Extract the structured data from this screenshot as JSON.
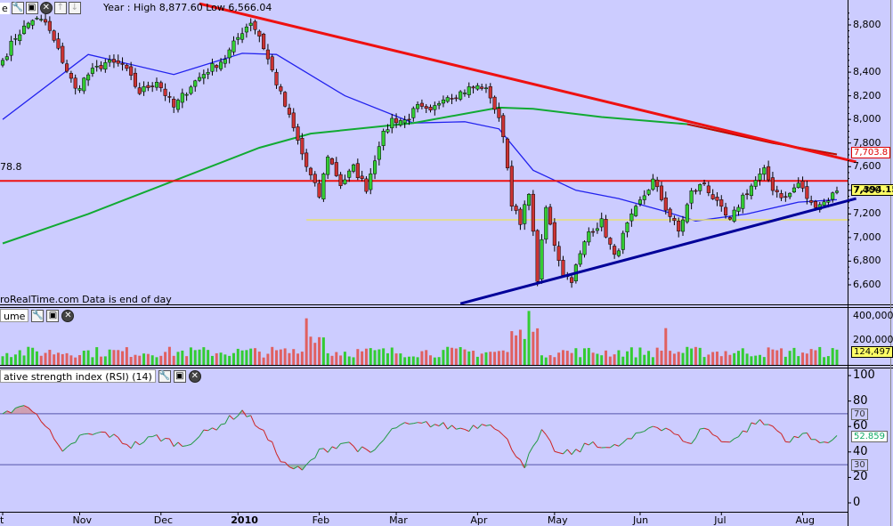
{
  "toolbar": {
    "menu_fragment": "e",
    "title": "Year : High 8,877.60 Low 6,566.04"
  },
  "price_panel": {
    "left_label": "78.8",
    "source_note": "roRealTime.com  Data is end of day",
    "y_ticks": [
      "8,800",
      "8,400",
      "8,200",
      "8,000",
      "7,800",
      "7,600",
      "7,400",
      "7,200",
      "7,000",
      "6,800",
      "6,600"
    ],
    "boxes": [
      {
        "text": "7,703.8",
        "color": "#dd0000",
        "value": 7703.8
      },
      {
        "text": "7,394.15",
        "color": "#111111",
        "value": 7394.15
      }
    ]
  },
  "volume_panel": {
    "title": "ume",
    "y_ticks": [
      "400,000",
      "200,000"
    ],
    "box": {
      "text": "124,497",
      "color": "#ffff66",
      "value": 124497
    }
  },
  "rsi_panel": {
    "title": "ative strength index (RSI) (14)",
    "y_ticks": [
      "100",
      "80",
      "60",
      "40",
      "20",
      "0"
    ],
    "level_boxes": [
      "70",
      "52.859",
      "30"
    ]
  },
  "x_axis": {
    "labels": [
      {
        "text": "t",
        "bold": false
      },
      {
        "text": "Nov",
        "bold": false
      },
      {
        "text": "Dec",
        "bold": false
      },
      {
        "text": "2010",
        "bold": true
      },
      {
        "text": "Feb",
        "bold": false
      },
      {
        "text": "Mar",
        "bold": false
      },
      {
        "text": "Apr",
        "bold": false
      },
      {
        "text": "May",
        "bold": false
      },
      {
        "text": "Jun",
        "bold": false
      },
      {
        "text": "Jul",
        "bold": false
      },
      {
        "text": "Aug",
        "bold": false
      }
    ]
  },
  "colors": {
    "background": "#ccccff",
    "bull": "#33cc33",
    "bear": "#cc3333",
    "ma_short": "#2222ee",
    "ma_long": "#11aa33",
    "trend_red": "#ee1111",
    "trend_blue": "#000099",
    "support_yellow": "#e8e070"
  },
  "chart_data": {
    "type": "candlestick",
    "title": "Year : High 8,877.60 Low 6,566.04",
    "high": 8877.6,
    "low": 6566.04,
    "last": 7394.15,
    "price_range": [
      6450,
      8950
    ],
    "x_months": [
      "Oct",
      "Nov",
      "Dec",
      "2010",
      "Feb",
      "Mar",
      "Apr",
      "May",
      "Jun",
      "Jul",
      "Aug"
    ],
    "close_anchors": [
      {
        "i": 0,
        "c": 8500
      },
      {
        "i": 3,
        "c": 8700
      },
      {
        "i": 7,
        "c": 8850
      },
      {
        "i": 10,
        "c": 8820
      },
      {
        "i": 14,
        "c": 8500
      },
      {
        "i": 17,
        "c": 8250
      },
      {
        "i": 20,
        "c": 8380
      },
      {
        "i": 24,
        "c": 8480
      },
      {
        "i": 28,
        "c": 8460
      },
      {
        "i": 32,
        "c": 8230
      },
      {
        "i": 36,
        "c": 8330
      },
      {
        "i": 40,
        "c": 8100
      },
      {
        "i": 44,
        "c": 8290
      },
      {
        "i": 48,
        "c": 8420
      },
      {
        "i": 52,
        "c": 8520
      },
      {
        "i": 56,
        "c": 8750
      },
      {
        "i": 58,
        "c": 8830
      },
      {
        "i": 60,
        "c": 8710
      },
      {
        "i": 64,
        "c": 8310
      },
      {
        "i": 68,
        "c": 7920
      },
      {
        "i": 71,
        "c": 7600
      },
      {
        "i": 74,
        "c": 7350
      },
      {
        "i": 76,
        "c": 7700
      },
      {
        "i": 79,
        "c": 7450
      },
      {
        "i": 82,
        "c": 7590
      },
      {
        "i": 85,
        "c": 7420
      },
      {
        "i": 88,
        "c": 7800
      },
      {
        "i": 91,
        "c": 8000
      },
      {
        "i": 94,
        "c": 7990
      },
      {
        "i": 97,
        "c": 8100
      },
      {
        "i": 100,
        "c": 8050
      },
      {
        "i": 103,
        "c": 8200
      },
      {
        "i": 106,
        "c": 8210
      },
      {
        "i": 109,
        "c": 8260
      },
      {
        "i": 112,
        "c": 8280
      },
      {
        "i": 114,
        "c": 8200
      },
      {
        "i": 117,
        "c": 7880
      },
      {
        "i": 119,
        "c": 7300
      },
      {
        "i": 121,
        "c": 7100
      },
      {
        "i": 123,
        "c": 7400
      },
      {
        "i": 125,
        "c": 6650
      },
      {
        "i": 127,
        "c": 7250
      },
      {
        "i": 129,
        "c": 6950
      },
      {
        "i": 131,
        "c": 6700
      },
      {
        "i": 133,
        "c": 6650
      },
      {
        "i": 135,
        "c": 6850
      },
      {
        "i": 137,
        "c": 7050
      },
      {
        "i": 140,
        "c": 7130
      },
      {
        "i": 143,
        "c": 6830
      },
      {
        "i": 146,
        "c": 7100
      },
      {
        "i": 149,
        "c": 7300
      },
      {
        "i": 152,
        "c": 7480
      },
      {
        "i": 155,
        "c": 7250
      },
      {
        "i": 158,
        "c": 7050
      },
      {
        "i": 161,
        "c": 7380
      },
      {
        "i": 164,
        "c": 7460
      },
      {
        "i": 167,
        "c": 7280
      },
      {
        "i": 170,
        "c": 7130
      },
      {
        "i": 173,
        "c": 7350
      },
      {
        "i": 176,
        "c": 7480
      },
      {
        "i": 178,
        "c": 7560
      },
      {
        "i": 180,
        "c": 7420
      },
      {
        "i": 183,
        "c": 7330
      },
      {
        "i": 186,
        "c": 7460
      },
      {
        "i": 189,
        "c": 7280
      },
      {
        "i": 192,
        "c": 7300
      },
      {
        "i": 195,
        "c": 7394
      }
    ],
    "moving_averages": [
      {
        "name": "MA short",
        "points": [
          [
            0,
            8000
          ],
          [
            20,
            8550
          ],
          [
            40,
            8380
          ],
          [
            56,
            8560
          ],
          [
            64,
            8550
          ],
          [
            80,
            8200
          ],
          [
            96,
            7970
          ],
          [
            108,
            7980
          ],
          [
            116,
            7920
          ],
          [
            124,
            7570
          ],
          [
            134,
            7400
          ],
          [
            144,
            7330
          ],
          [
            154,
            7230
          ],
          [
            162,
            7140
          ],
          [
            174,
            7200
          ],
          [
            186,
            7300
          ],
          [
            195,
            7320
          ]
        ]
      },
      {
        "name": "MA long",
        "points": [
          [
            0,
            6950
          ],
          [
            20,
            7200
          ],
          [
            40,
            7480
          ],
          [
            60,
            7760
          ],
          [
            72,
            7880
          ],
          [
            96,
            7970
          ],
          [
            116,
            8100
          ],
          [
            124,
            8090
          ],
          [
            140,
            8020
          ],
          [
            160,
            7960
          ],
          [
            180,
            7800
          ],
          [
            195,
            7703.8
          ]
        ]
      }
    ],
    "trendlines": [
      {
        "color": "red",
        "from": [
          46,
          8980
        ],
        "to": [
          197,
          7640
        ]
      },
      {
        "color": "blue",
        "from": [
          107,
          6440
        ],
        "to": [
          197,
          7330
        ]
      }
    ],
    "horizontal_levels": [
      {
        "value": 7480,
        "color": "red"
      },
      {
        "value": 7150,
        "color": "yellow"
      }
    ],
    "volume": {
      "ylim": [
        0,
        450000
      ],
      "last": 124497
    },
    "rsi": {
      "period": 14,
      "ylim": [
        0,
        100
      ],
      "levels": [
        70,
        30
      ],
      "last": 52.859,
      "anchors": [
        {
          "i": 0,
          "v": 70
        },
        {
          "i": 4,
          "v": 76
        },
        {
          "i": 8,
          "v": 72
        },
        {
          "i": 14,
          "v": 38
        },
        {
          "i": 18,
          "v": 52
        },
        {
          "i": 24,
          "v": 55
        },
        {
          "i": 30,
          "v": 45
        },
        {
          "i": 36,
          "v": 52
        },
        {
          "i": 42,
          "v": 45
        },
        {
          "i": 50,
          "v": 60
        },
        {
          "i": 56,
          "v": 72
        },
        {
          "i": 60,
          "v": 60
        },
        {
          "i": 66,
          "v": 30
        },
        {
          "i": 70,
          "v": 25
        },
        {
          "i": 74,
          "v": 40
        },
        {
          "i": 80,
          "v": 48
        },
        {
          "i": 86,
          "v": 38
        },
        {
          "i": 92,
          "v": 60
        },
        {
          "i": 100,
          "v": 62
        },
        {
          "i": 108,
          "v": 58
        },
        {
          "i": 114,
          "v": 64
        },
        {
          "i": 118,
          "v": 48
        },
        {
          "i": 122,
          "v": 30
        },
        {
          "i": 126,
          "v": 55
        },
        {
          "i": 130,
          "v": 38
        },
        {
          "i": 134,
          "v": 40
        },
        {
          "i": 138,
          "v": 48
        },
        {
          "i": 142,
          "v": 42
        },
        {
          "i": 148,
          "v": 52
        },
        {
          "i": 152,
          "v": 61
        },
        {
          "i": 156,
          "v": 58
        },
        {
          "i": 160,
          "v": 45
        },
        {
          "i": 164,
          "v": 60
        },
        {
          "i": 168,
          "v": 48
        },
        {
          "i": 172,
          "v": 52
        },
        {
          "i": 176,
          "v": 64
        },
        {
          "i": 180,
          "v": 60
        },
        {
          "i": 184,
          "v": 48
        },
        {
          "i": 188,
          "v": 55
        },
        {
          "i": 192,
          "v": 45
        },
        {
          "i": 195,
          "v": 52.859
        }
      ]
    }
  }
}
